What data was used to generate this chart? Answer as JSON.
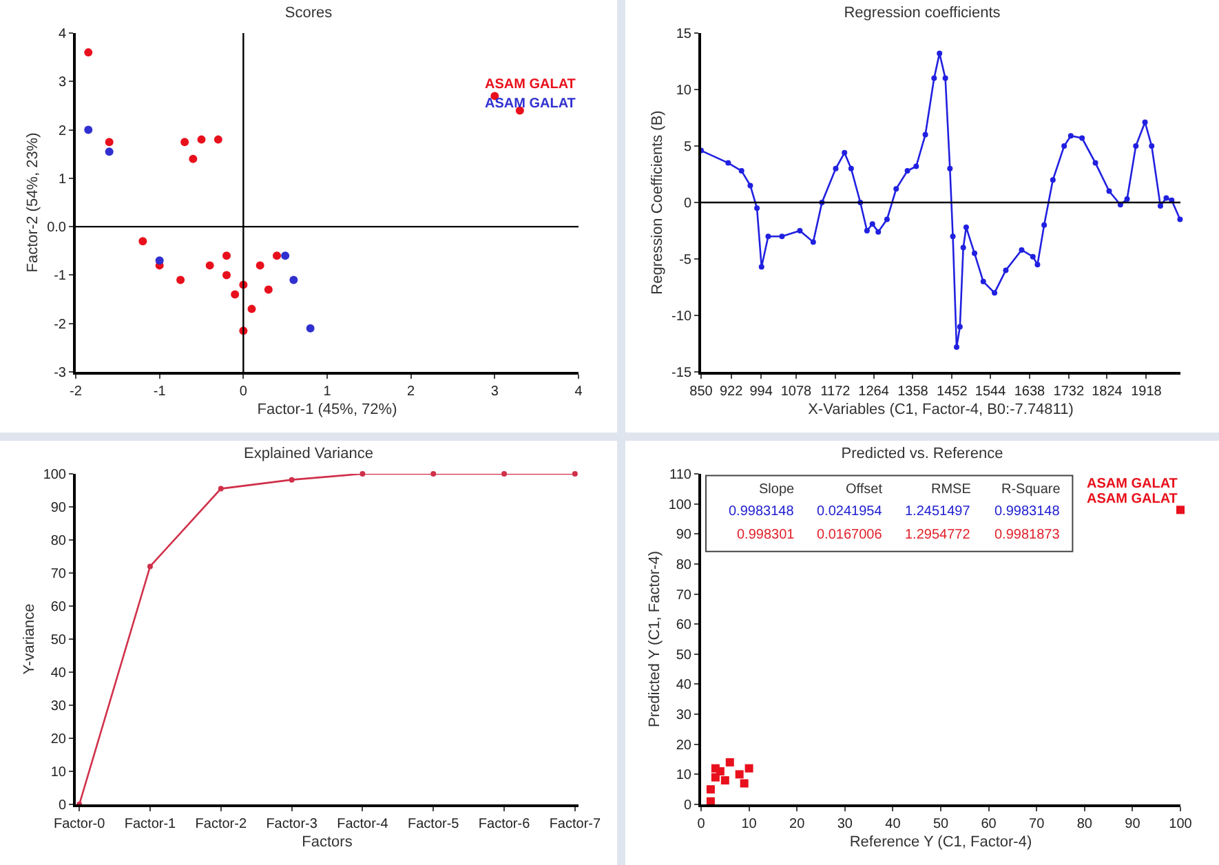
{
  "chart_data": [
    {
      "type": "scatter",
      "title": "Scores",
      "xlabel": "Factor-1 (45%, 72%)",
      "ylabel": "Factor-2 (54%, 23%)",
      "xlim": [
        -2,
        4
      ],
      "xticks": [
        -2,
        -1,
        0,
        1,
        2,
        3,
        4
      ],
      "ylim": [
        -3,
        4
      ],
      "yticks": [
        -3,
        -2,
        -1,
        {
          "value": 0,
          "label": "0.0"
        },
        1,
        2,
        3,
        4
      ],
      "grid": false,
      "marker": "circle",
      "series": [
        {
          "color": "#e8101c",
          "x": [
            -1.85,
            -1.6,
            -0.6,
            -0.7,
            -0.5,
            -0.3,
            -1.2,
            -1.0,
            -0.75,
            -0.4,
            -0.2,
            0,
            0.2,
            0.3,
            -0.1,
            0.1,
            0,
            3.3,
            3.0,
            -0.2,
            0.4
          ],
          "values": [
            3.6,
            1.75,
            1.4,
            1.75,
            1.8,
            1.8,
            -0.3,
            -0.8,
            -1.1,
            -0.8,
            -1.0,
            -1.2,
            -0.8,
            -1.3,
            -1.4,
            -1.7,
            -2.15,
            2.4,
            2.7,
            -0.6,
            -0.6
          ]
        },
        {
          "color": "#3030d0",
          "x": [
            -1.6,
            -1.85,
            -1.0,
            0.5,
            0.8,
            0.6
          ],
          "values": [
            1.55,
            2.0,
            -0.7,
            -0.6,
            -2.1,
            -1.1
          ]
        }
      ],
      "annotations": [
        "ASAM GALAT",
        "ASAM GALAT"
      ],
      "ref_lines": [
        {
          "axis": "x",
          "value": 0,
          "color": "#000000"
        },
        {
          "axis": "y",
          "value": 0,
          "color": "#000000"
        }
      ]
    },
    {
      "type": "line",
      "title": "Regression coefficients",
      "xlabel": "X-Variables (C1, Factor-4, B0:-7.74811)",
      "ylabel": "Regression Coefficients (B)",
      "xlim": [
        850,
        2000
      ],
      "xticks": [
        850,
        922,
        994,
        1078,
        1172,
        1264,
        1358,
        1452,
        1544,
        1638,
        1732,
        1824,
        1918
      ],
      "ylim": [
        -15,
        15
      ],
      "yticks": [
        -15,
        -10,
        -5,
        0,
        5,
        10,
        15
      ],
      "grid": false,
      "marker": "circle",
      "series": [
        {
          "color": "#2020e0",
          "x": [
            850,
            915,
            947,
            968,
            984,
            995,
            1011,
            1044,
            1087,
            1119,
            1140,
            1173,
            1194,
            1210,
            1232,
            1248,
            1261,
            1275,
            1296,
            1318,
            1345,
            1366,
            1388,
            1409,
            1422,
            1436,
            1447,
            1454,
            1463,
            1471,
            1479,
            1486,
            1506,
            1527,
            1554,
            1581,
            1619,
            1646,
            1657,
            1673,
            1694,
            1721,
            1737,
            1764,
            1796,
            1829,
            1856,
            1872,
            1893,
            1915,
            1931,
            1952,
            1966,
            1979,
            1999
          ],
          "values": [
            4.6,
            3.5,
            2.8,
            1.5,
            -0.5,
            -5.7,
            -3.0,
            -3.0,
            -2.5,
            -3.5,
            0,
            3,
            4.4,
            3,
            0,
            -2.5,
            -1.9,
            -2.6,
            -1.5,
            1.2,
            2.8,
            3.2,
            6,
            11,
            13.2,
            11,
            3,
            -3,
            -12.8,
            -11,
            -4,
            -2.2,
            -4.5,
            -7,
            -8,
            -6,
            -4.2,
            -4.8,
            -5.5,
            -2,
            2,
            5,
            5.9,
            5.7,
            3.5,
            1,
            -0.2,
            0.3,
            5,
            7.1,
            5,
            -0.3,
            0.4,
            0.2,
            -1.5
          ]
        }
      ],
      "ref_lines": [
        {
          "axis": "y",
          "value": 0,
          "color": "#000000"
        }
      ]
    },
    {
      "type": "line",
      "title": "Explained Variance",
      "xlabel": "Factors",
      "ylabel": "Y-variance",
      "categories": [
        "Factor-0",
        "Factor-1",
        "Factor-2",
        "Factor-3",
        "Factor-4",
        "Factor-5",
        "Factor-6",
        "Factor-7"
      ],
      "ylim": [
        0,
        100
      ],
      "yticks": [
        0,
        10,
        20,
        30,
        40,
        50,
        60,
        70,
        80,
        90,
        100
      ],
      "grid": false,
      "marker": "circle",
      "series": [
        {
          "color": "#d0304a",
          "values": [
            0,
            72,
            95.5,
            98.2,
            100,
            100,
            100,
            100
          ]
        }
      ]
    },
    {
      "type": "scatter",
      "title": "Predicted vs. Reference",
      "xlabel": "Reference Y (C1, Factor-4)",
      "ylabel": "Predicted Y (C1, Factor-4)",
      "xlim": [
        0,
        100
      ],
      "xticks": [
        0,
        10,
        20,
        30,
        40,
        50,
        60,
        70,
        80,
        90,
        100
      ],
      "ylim": [
        0,
        110
      ],
      "yticks": [
        0,
        10,
        20,
        30,
        40,
        50,
        60,
        70,
        80,
        90,
        100,
        110
      ],
      "grid": false,
      "marker": "square",
      "series": [
        {
          "color": "#e8101c",
          "x": [
            2,
            3,
            5,
            8,
            10,
            2,
            6,
            3,
            9,
            4,
            100
          ],
          "values": [
            5,
            12,
            8,
            10,
            12,
            1,
            14,
            9,
            7,
            11,
            98
          ]
        }
      ],
      "annotations": [
        "Slope",
        "Offset",
        "RMSE",
        "R-Square",
        "0.9983148",
        "0.0241954",
        "1.2451497",
        "0.9983148",
        "0.998301",
        "0.0167006",
        "1.2954772",
        "0.9981873",
        "ASAM GALAT",
        "ASAM GALAT"
      ]
    }
  ]
}
